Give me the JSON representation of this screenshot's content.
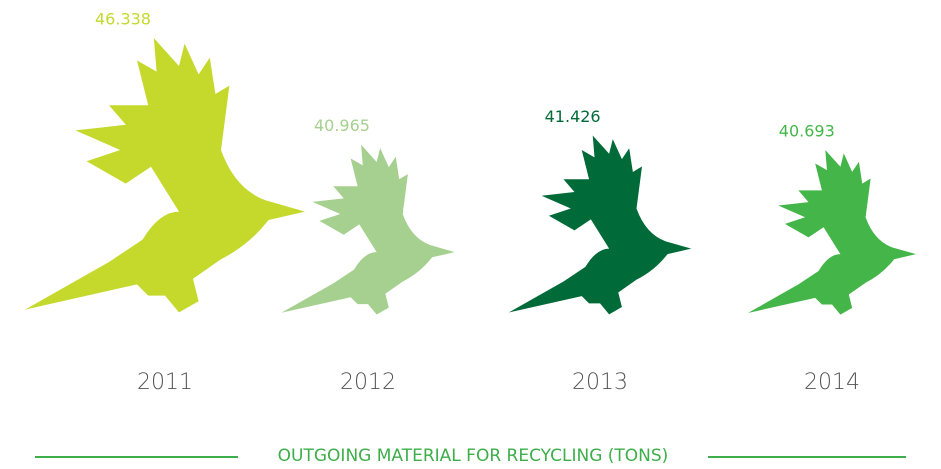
{
  "chart_data": {
    "type": "pictograph",
    "title": "OUTGOING MATERIAL FOR RECYCLING (TONS)",
    "categories": [
      "2011",
      "2012",
      "2013",
      "2014"
    ],
    "values": [
      46.338,
      40.965,
      41.426,
      40.693
    ],
    "colors": [
      "#c5d92d",
      "#a6d08f",
      "#006a38",
      "#44b649"
    ],
    "title_color": "#3dae49"
  }
}
